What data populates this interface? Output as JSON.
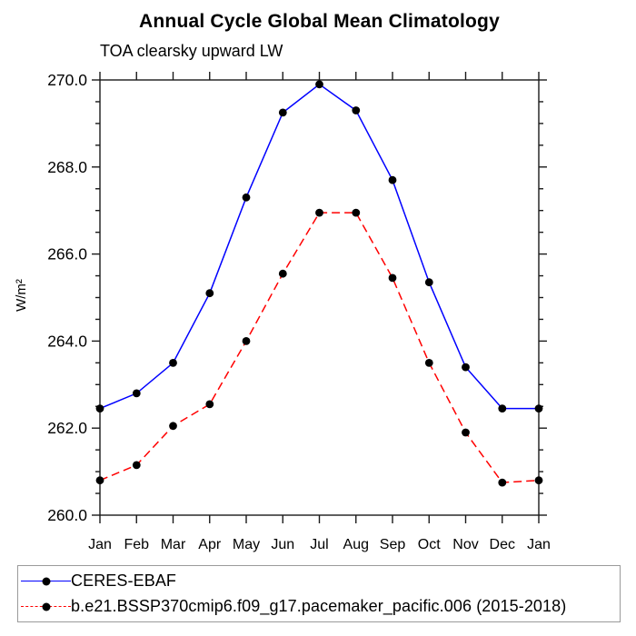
{
  "chart_data": {
    "type": "line",
    "title": "Annual Cycle Global Mean Climatology",
    "subtitle": "TOA clearsky upward LW",
    "ylabel": "W/m²",
    "xlabel": "",
    "categories": [
      "Jan",
      "Feb",
      "Mar",
      "Apr",
      "May",
      "Jun",
      "Jul",
      "Aug",
      "Sep",
      "Oct",
      "Nov",
      "Dec",
      "Jan"
    ],
    "ylim": [
      260.0,
      270.0
    ],
    "yticks": [
      260.0,
      262.0,
      264.0,
      266.0,
      268.0,
      270.0
    ],
    "ytick_minor_interval": 0.5,
    "grid": false,
    "legend_position": "bottom",
    "marker": "filled-circle",
    "marker_color": "#000000",
    "series": [
      {
        "name": "CERES-EBAF",
        "color": "#0000ff",
        "style": "solid",
        "values": [
          262.45,
          262.8,
          263.5,
          265.1,
          267.3,
          269.25,
          269.9,
          269.3,
          267.7,
          265.35,
          263.4,
          262.45,
          262.45
        ]
      },
      {
        "name": "b.e21.BSSP370cmip6.f09_g17.pacemaker_pacific.006 (2015-2018)",
        "color": "#ff0000",
        "style": "dashed",
        "values": [
          260.8,
          261.15,
          262.05,
          262.55,
          264.0,
          265.55,
          266.95,
          266.95,
          265.45,
          263.5,
          261.9,
          260.75,
          260.8
        ]
      }
    ]
  }
}
